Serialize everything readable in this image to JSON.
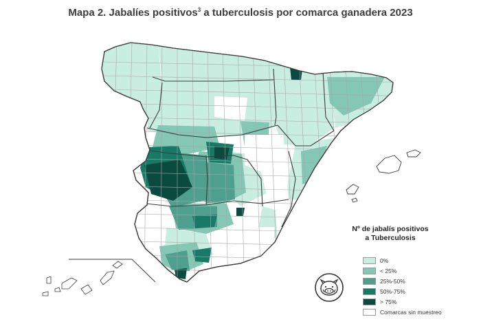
{
  "title": {
    "prefix": "Mapa 2. Jabalíes positivos",
    "superscript": "3",
    "suffix": " a tuberculosis por comarca ganadera 2023"
  },
  "legend": {
    "title_line1": "Nº de jabalís positivos",
    "title_line2": "a Tuberculosis",
    "items": [
      {
        "label": "0%",
        "color": "#c9ede1"
      },
      {
        "label": "< 25%",
        "color": "#84c7b5"
      },
      {
        "label": "25%-50%",
        "color": "#4e9f8e"
      },
      {
        "label": "50%-75%",
        "color": "#167a66"
      },
      {
        "label": "> 75%",
        "color": "#0a4a3f"
      },
      {
        "label": "Comarcas sin muestreo",
        "color": "#ffffff"
      }
    ]
  },
  "colors": {
    "border": "#3a3a3a",
    "comarca_line": "#a8a8a8",
    "no_sampling": "#ffffff",
    "title_text": "#3d3d3d"
  },
  "logo": {
    "icon": "boar-icon"
  }
}
